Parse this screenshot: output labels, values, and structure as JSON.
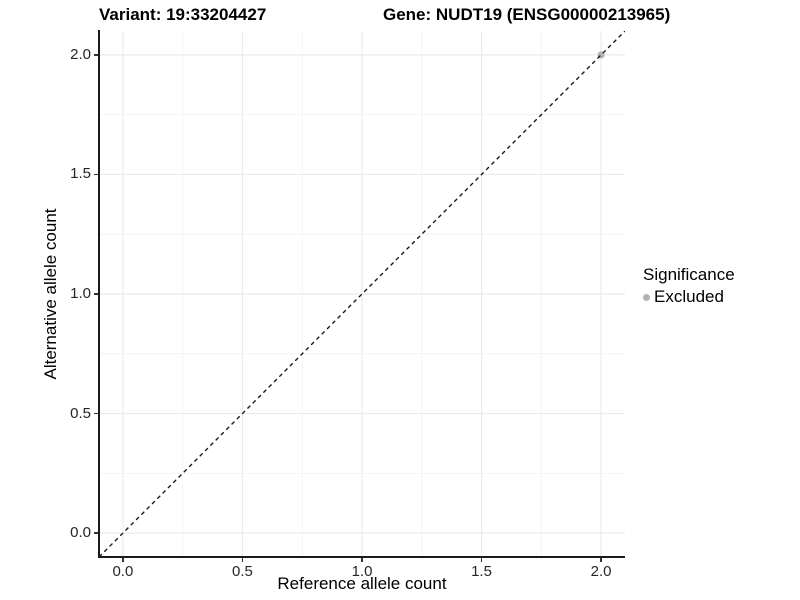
{
  "titles": {
    "variant": "Variant: 19:33204427",
    "gene": "Gene: NUDT19 (ENSG00000213965)"
  },
  "chart_data": {
    "type": "scatter",
    "title": "Variant: 19:33204427   Gene: NUDT19 (ENSG00000213965)",
    "xlabel": "Reference allele count",
    "ylabel": "Alternative allele count",
    "xlim": [
      -0.1,
      2.1
    ],
    "ylim": [
      -0.1,
      2.1
    ],
    "x_ticks": [
      0.0,
      0.5,
      1.0,
      1.5,
      2.0
    ],
    "y_ticks": [
      0.0,
      0.5,
      1.0,
      1.5,
      2.0
    ],
    "x_tick_labels": [
      "0.0",
      "0.5",
      "1.0",
      "1.5",
      "2.0"
    ],
    "y_tick_labels": [
      "0.0",
      "0.5",
      "1.0",
      "1.5",
      "2.0"
    ],
    "minor_gridlines": [
      0.25,
      0.75,
      1.25,
      1.75
    ],
    "grid": true,
    "series": [
      {
        "name": "Excluded",
        "points": [
          {
            "x": 2.0,
            "y": 2.0
          }
        ],
        "color": "#b3b3b3",
        "marker_radius": 3.6
      }
    ],
    "reference_line": {
      "type": "identity",
      "style": "dashed",
      "from": [
        -0.1,
        -0.1
      ],
      "to": [
        2.1,
        2.1
      ],
      "color": "#1a1a1a"
    },
    "legend": {
      "position": "right",
      "title": "Significance",
      "entries": [
        {
          "label": "Excluded",
          "color": "#b3b3b3"
        }
      ]
    }
  },
  "colors": {
    "background": "#ffffff",
    "axis_line": "#1a1a1a",
    "tick": "#333333",
    "tick_label": "#262626",
    "grid_major": "#ebebeb",
    "grid_minor": "#f4f4f4",
    "point": "#b3b3b3",
    "dashed_line": "#1a1a1a"
  }
}
